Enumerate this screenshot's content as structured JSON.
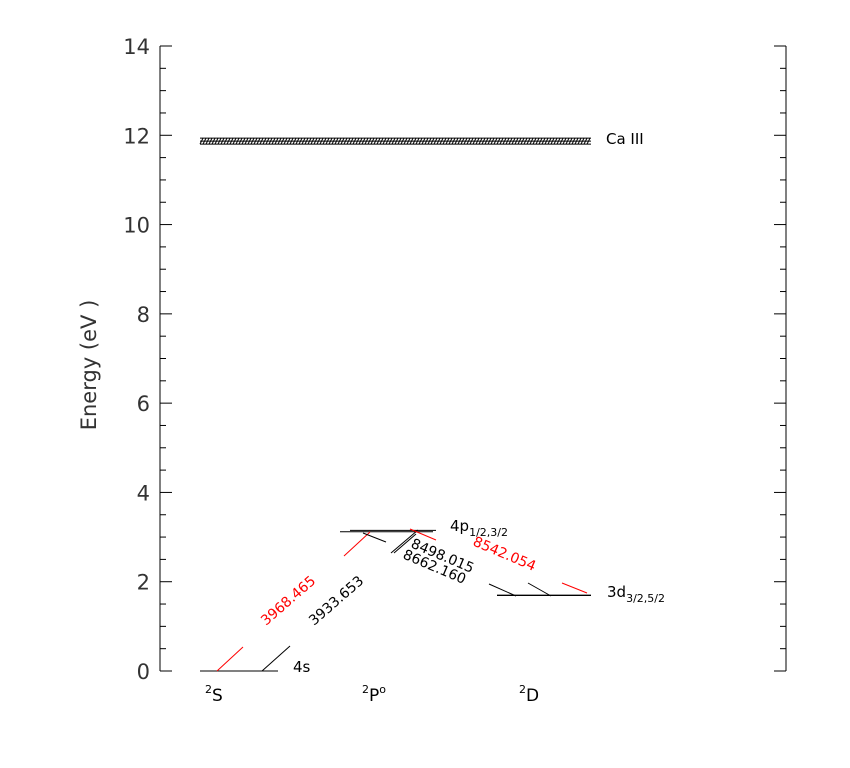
{
  "chart_data": {
    "type": "energy-level-diagram",
    "ylabel": "Energy (eV )",
    "ylim": [
      0,
      14
    ],
    "y_major_ticks": [
      0,
      2,
      4,
      6,
      8,
      10,
      12,
      14
    ],
    "y_minor_step": 0.5,
    "columns": [
      {
        "id": "S",
        "label": "S",
        "multiplicity": "2",
        "suffix": ""
      },
      {
        "id": "P",
        "label": "P",
        "multiplicity": "2",
        "suffix": "o"
      },
      {
        "id": "D",
        "label": "D",
        "multiplicity": "2",
        "suffix": ""
      }
    ],
    "ionization": {
      "energy": 11.87,
      "label": "Ca III"
    },
    "levels": [
      {
        "id": "4s",
        "column": "S",
        "energies": [
          0.0
        ],
        "label": "4s",
        "sub": ""
      },
      {
        "id": "4p",
        "column": "P",
        "energies": [
          3.12,
          3.15
        ],
        "label": "4p",
        "sub": "1/2,3/2"
      },
      {
        "id": "3d",
        "column": "D",
        "energies": [
          1.69,
          1.7
        ],
        "label": "3d",
        "sub": "3/2,5/2"
      }
    ],
    "transitions": [
      {
        "label": "3968.465",
        "color": "#ff0000",
        "from": "4s",
        "to": "4p"
      },
      {
        "label": "3933.653",
        "color": "#000000",
        "from": "4s",
        "to": "4p"
      },
      {
        "label": "8498.015",
        "color": "#000000",
        "from": "4p",
        "to": "3d"
      },
      {
        "label": "8662.160",
        "color": "#000000",
        "from": "4p",
        "to": "3d"
      },
      {
        "label": "8542.054",
        "color": "#ff0000",
        "from": "4p",
        "to": "3d"
      }
    ]
  }
}
